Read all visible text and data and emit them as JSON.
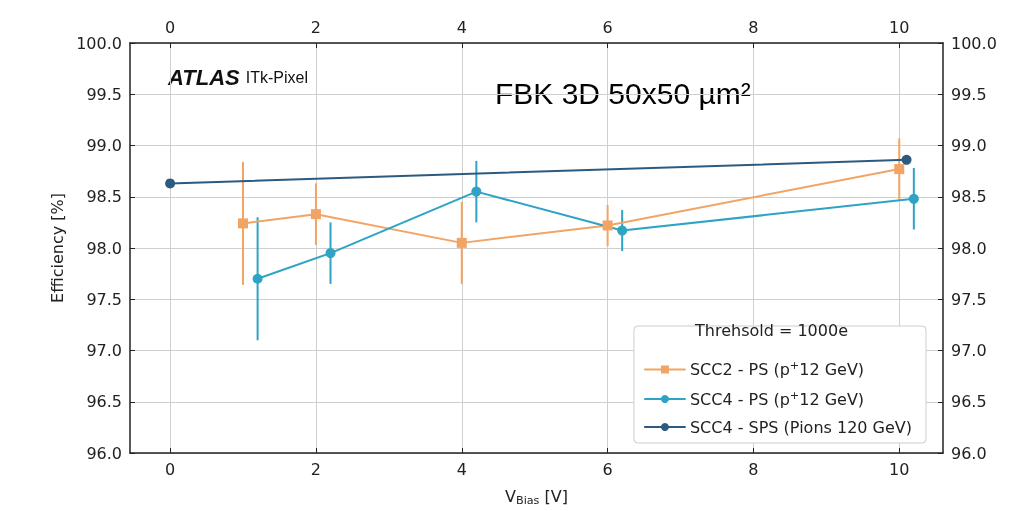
{
  "chart_data": {
    "type": "line",
    "xlabel": "V$_{Bias}$ [V]",
    "ylabel": "Efficiency [%]",
    "legend_title": "Threhsold = 1000e",
    "annotations": [
      "ATLAS ITk-Pixel",
      "FBK 3D 50x50 µm²"
    ],
    "xlim": [
      -0.55,
      10.6
    ],
    "xticks": [
      0,
      2,
      4,
      6,
      8,
      10
    ],
    "x2lim": [
      -0.55,
      10.6
    ],
    "x2ticks": [
      0,
      2,
      4,
      6,
      8,
      10
    ],
    "ylim": [
      96,
      100
    ],
    "yticks": [
      {
        "value": 96,
        "label": "96.0"
      },
      {
        "value": 96.5,
        "label": "96.5"
      },
      {
        "value": 97,
        "label": "97.0"
      },
      {
        "value": 97.5,
        "label": "97.5"
      },
      {
        "value": 98,
        "label": "98.0"
      },
      {
        "value": 98.5,
        "label": "98.5"
      },
      {
        "value": 99,
        "label": "99.0"
      },
      {
        "value": 99.5,
        "label": "99.5"
      },
      {
        "value": 100,
        "label": "100.0"
      }
    ],
    "y2lim": [
      96,
      100
    ],
    "y2ticks": [
      {
        "value": 96,
        "label": "96.0"
      },
      {
        "value": 96.5,
        "label": "96.5"
      },
      {
        "value": 97,
        "label": "97.0"
      },
      {
        "value": 97.5,
        "label": "97.5"
      },
      {
        "value": 98,
        "label": "98.0"
      },
      {
        "value": 98.5,
        "label": "98.5"
      },
      {
        "value": 99,
        "label": "99.0"
      },
      {
        "value": 99.5,
        "label": "99.5"
      },
      {
        "value": 100,
        "label": "100.0"
      }
    ],
    "grid": true,
    "legend": "bottom right",
    "series": [
      {
        "name": "SCC2 - PS (p$^{+}$12 GeV)",
        "color": "#f2a464",
        "marker": "square",
        "x": [
          1,
          2,
          4,
          6,
          10
        ],
        "values": [
          98.24,
          98.33,
          98.05,
          98.22,
          98.77
        ],
        "errors": [
          0.6,
          0.3,
          0.4,
          0.2,
          0.3
        ]
      },
      {
        "name": "SCC4 - PS (p$^{+}$12 GeV)",
        "color": "#2ea3c4",
        "marker": "circle",
        "x": [
          1.2,
          2.2,
          4.2,
          6.2,
          10.2
        ],
        "values": [
          97.7,
          97.95,
          98.55,
          98.17,
          98.48
        ],
        "errors": [
          0.6,
          0.3,
          0.3,
          0.2,
          0.3
        ]
      },
      {
        "name": "SCC4 - SPS (Pions 120 GeV)",
        "color": "#2c5a80",
        "marker": "circle",
        "x": [
          0,
          10.1
        ],
        "values": [
          98.63,
          98.86
        ]
      }
    ]
  }
}
